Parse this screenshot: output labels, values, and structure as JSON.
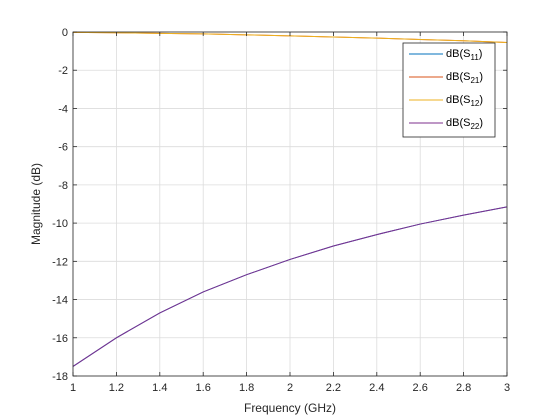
{
  "chart_data": {
    "type": "line",
    "xlabel": "Frequency (GHz)",
    "ylabel": "Magnitude (dB)",
    "xlim": [
      1,
      3
    ],
    "ylim": [
      -18,
      0
    ],
    "xticks": [
      1,
      1.2,
      1.4,
      1.6,
      1.8,
      2,
      2.2,
      2.4,
      2.6,
      2.8,
      3
    ],
    "yticks": [
      0,
      -2,
      -4,
      -6,
      -8,
      -10,
      -12,
      -14,
      -16,
      -18
    ],
    "grid": true,
    "legend_position": "top-right",
    "x": [
      1,
      1.2,
      1.4,
      1.6,
      1.8,
      2,
      2.2,
      2.4,
      2.6,
      2.8,
      3
    ],
    "series": [
      {
        "name": "dB(S11)",
        "label_base": "dB(S",
        "label_sub": "11",
        "label_end": ")",
        "color": "#0072BD",
        "values": [
          -17.5,
          -16.0,
          -14.7,
          -13.6,
          -12.7,
          -11.9,
          -11.2,
          -10.6,
          -10.05,
          -9.58,
          -9.15
        ]
      },
      {
        "name": "dB(S21)",
        "label_base": "dB(S",
        "label_sub": "21",
        "label_end": ")",
        "color": "#D95319",
        "values": [
          -0.02,
          -0.04,
          -0.07,
          -0.1,
          -0.15,
          -0.2,
          -0.26,
          -0.32,
          -0.39,
          -0.46,
          -0.55
        ]
      },
      {
        "name": "dB(S12)",
        "label_base": "dB(S",
        "label_sub": "12",
        "label_end": ")",
        "color": "#EDB120",
        "values": [
          -0.02,
          -0.04,
          -0.07,
          -0.1,
          -0.15,
          -0.2,
          -0.26,
          -0.32,
          -0.39,
          -0.46,
          -0.55
        ]
      },
      {
        "name": "dB(S22)",
        "label_base": "dB(S",
        "label_sub": "22",
        "label_end": ")",
        "color": "#7E2F8E",
        "values": [
          -17.5,
          -16.0,
          -14.7,
          -13.6,
          -12.7,
          -11.9,
          -11.2,
          -10.6,
          -10.05,
          -9.58,
          -9.15
        ]
      }
    ]
  }
}
